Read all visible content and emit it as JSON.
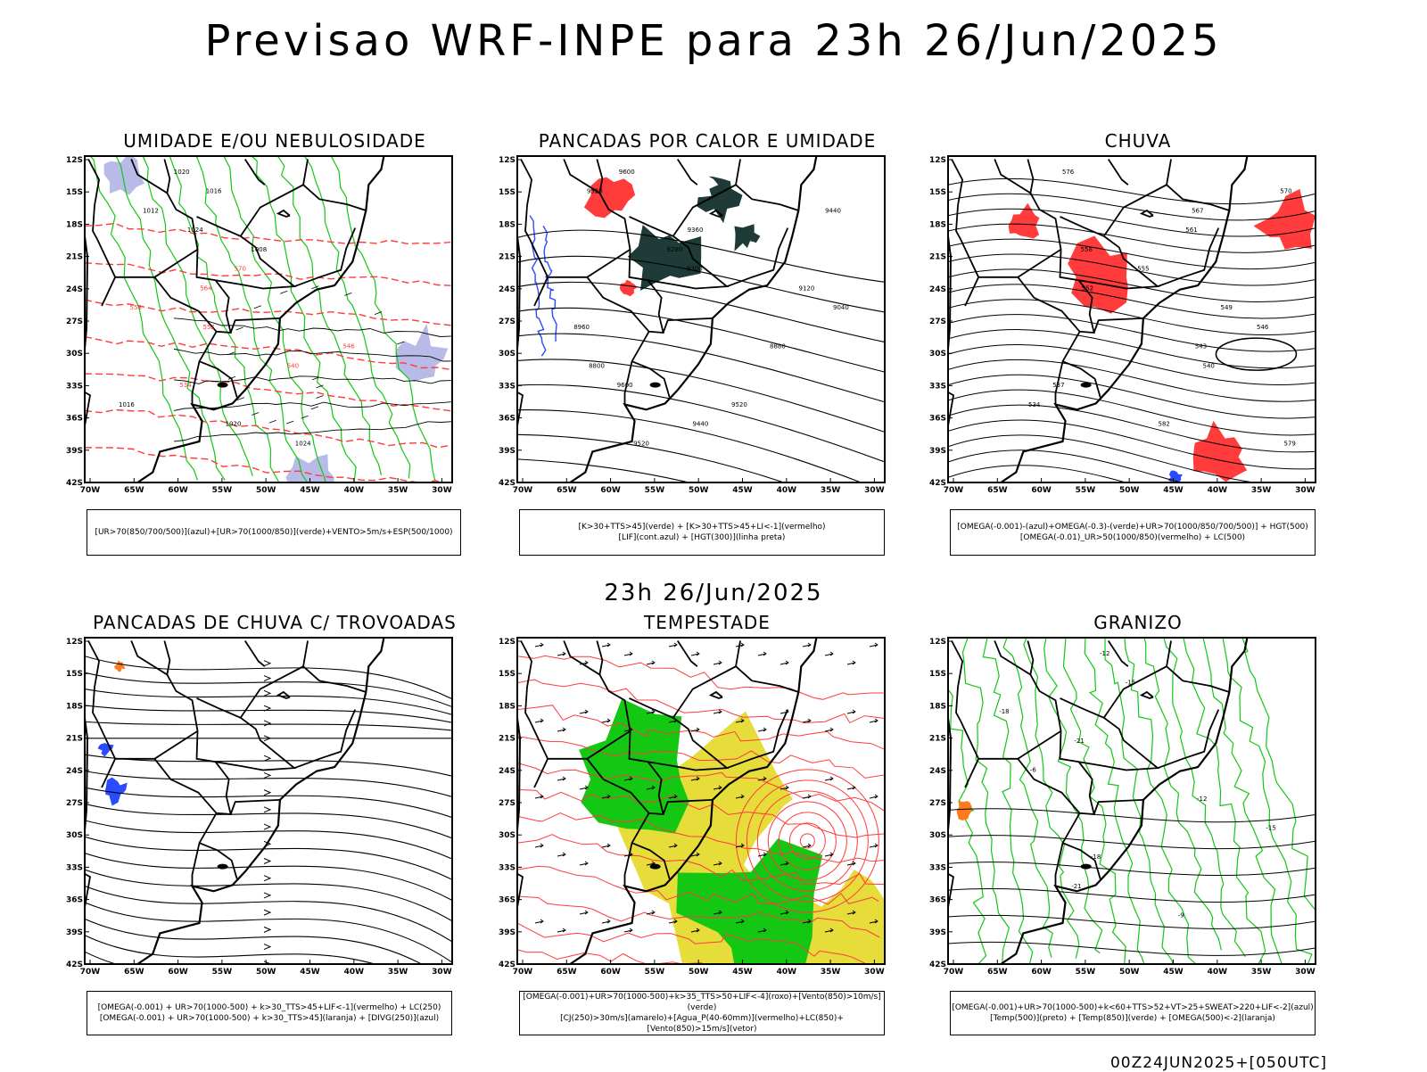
{
  "title": "Previsao WRF-INPE  para 23h 26/Jun/2025",
  "mid_title": "23h 26/Jun/2025",
  "footer": "00Z24JUN2025+[050UTC]",
  "axes": {
    "lat_labels": [
      "12S",
      "15S",
      "18S",
      "21S",
      "24S",
      "27S",
      "30S",
      "33S",
      "36S",
      "39S",
      "42S"
    ],
    "lon_labels": [
      "70W",
      "65W",
      "60W",
      "55W",
      "50W",
      "45W",
      "40W",
      "35W",
      "30W"
    ]
  },
  "colors": {
    "blue": "#2b4bff",
    "green": "#13c713",
    "red": "#ff3b3b",
    "dark_teal": "#1e3b38",
    "yellow": "#e6dc3a",
    "orange": "#ff7a1a",
    "lavender": "#b8bbe8"
  },
  "panels": [
    {
      "title": "UMIDADE E/OU NEBULOSIDADE",
      "legend": [
        "[UR>70(850/700/500)](azul)+[UR>70(1000/850)](verde)+VENTO>5m/s+ESP(500/1000)"
      ],
      "contour_labels": [
        "1020",
        "1016",
        "1012",
        "1024",
        "1008",
        "570",
        "564",
        "558",
        "552",
        "546",
        "540",
        "534",
        "1016",
        "1020",
        "1024"
      ]
    },
    {
      "title": "PANCADAS POR CALOR E UMIDADE",
      "legend": [
        "[K>30+TTS>45](verde) + [K>30+TTS>45+LI<-1](vermelho)",
        "[LIF](cont.azul) + [HGT(300)](linha preta)"
      ],
      "contour_labels": [
        "9600",
        "9520",
        "9440",
        "9360",
        "9280",
        "9200",
        "9120",
        "9040",
        "8960",
        "8880",
        "8800",
        "9600",
        "9520",
        "9440",
        "9520"
      ]
    },
    {
      "title": "CHUVA",
      "legend": [
        "[OMEGA(-0.001)-(azul)+OMEGA(-0.3)-(verde)+UR>70(1000/850/700/500)] + HGT(500)",
        "[OMEGA(-0.01)_UR>50(1000/850)(vermelho) + LC(500)"
      ],
      "contour_labels": [
        "576",
        "570",
        "567",
        "561",
        "558",
        "555",
        "552",
        "549",
        "546",
        "543",
        "540",
        "537",
        "534",
        "582",
        "579"
      ]
    },
    {
      "title": "PANCADAS DE CHUVA C/ TROVOADAS",
      "legend": [
        "[OMEGA(-0.001) + UR>70(1000-500) + k>30_TTS>45+LIF<-1](vermelho) + LC(250)",
        "[OMEGA(-0.001) + UR>70(1000-500) + k>30_TTS>45](laranja) + [DIVG(250)](azul)"
      ],
      "contour_labels": []
    },
    {
      "title": "TEMPESTADE",
      "legend": [
        "[OMEGA(-0.001)+UR>70(1000-500)+k>35_TTS>50+LIF<-4](roxo)+[Vento(850)>10m/s](verde)",
        "[CJ(250)>30m/s](amarelo)+[Agua_P(40-60mm)](vermelho)+LC(850)+[Vento(850)>15m/s](vetor)"
      ],
      "contour_labels": []
    },
    {
      "title": "GRANIZO",
      "legend": [
        "[OMEGA(-0.001)+UR>70(1000-500)+k<60+TTS>52+VT>25+SWEAT>220+LIF<-2](azul)",
        "[Temp(500)](preto) + [Temp(850)](verde) + [OMEGA(500)<-2](laranja)"
      ],
      "contour_labels": [
        "-12",
        "-15",
        "-18",
        "-21",
        "-6",
        "-12",
        "-15",
        "-18",
        "-21",
        "-9"
      ]
    }
  ]
}
